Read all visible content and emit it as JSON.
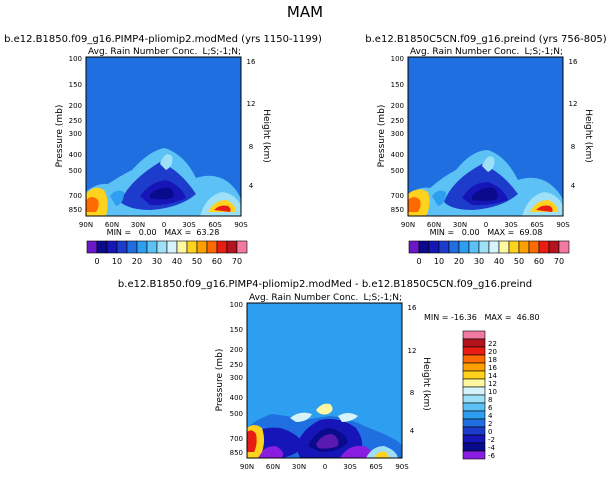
{
  "page_title": "MAM",
  "colors": {
    "top_levels": [
      "#6a18c8",
      "#0a0a8c",
      "#1515b8",
      "#1e3ccc",
      "#1f6fe0",
      "#2e9ef0",
      "#5cc2f5",
      "#9ee0f7",
      "#d6f2fa",
      "#fff8a0",
      "#ffd21e",
      "#ffa000",
      "#ff6a00",
      "#e81e14",
      "#b4141e",
      "#f07aa0"
    ],
    "diff_levels": [
      "#8a1ee0",
      "#0a0a8c",
      "#1515b8",
      "#1e3ccc",
      "#1f6fe0",
      "#2e9ef0",
      "#5cc2f5",
      "#9ee0f7",
      "#d6f2fa",
      "#fff8a0",
      "#ffd21e",
      "#ffa000",
      "#ff6a00",
      "#e81e14",
      "#b4141e",
      "#f07aa0"
    ]
  },
  "chart_data": [
    {
      "type": "heatmap",
      "title": "b.e12.B1850.f09_g16.PIMP4-pliomip2.modMed (yrs 1150-1199)",
      "subtitle_left": "Avg. Rain Number Conc.",
      "subtitle_right": "L;S;-1;N;",
      "ylabel": "Pressure (mb)",
      "ylabel_right": "Height (km)",
      "x_ticks": [
        "90N",
        "60N",
        "30N",
        "0",
        "30S",
        "60S",
        "90S"
      ],
      "y_ticks": [
        "100",
        "150",
        "200",
        "250",
        "300",
        "400",
        "500",
        "700",
        "850"
      ],
      "height_ticks": [
        "16",
        "12",
        "8",
        "4"
      ],
      "stats": "MIN =   0.00   MAX =  63.28",
      "colorbar_labels": [
        "0",
        "10",
        "20",
        "30",
        "40",
        "50",
        "60",
        "70"
      ],
      "min": 0.0,
      "max": 63.28
    },
    {
      "type": "heatmap",
      "title": "b.e12.B1850C5CN.f09_g16.preind (yrs 756-805)",
      "subtitle_left": "Avg. Rain Number Conc.",
      "subtitle_right": "L;S;-1;N;",
      "ylabel": "Pressure (mb)",
      "ylabel_right": "Height (km)",
      "x_ticks": [
        "90N",
        "60N",
        "30N",
        "0",
        "30S",
        "60S",
        "90S"
      ],
      "y_ticks": [
        "100",
        "150",
        "200",
        "250",
        "300",
        "400",
        "500",
        "700",
        "850"
      ],
      "height_ticks": [
        "16",
        "12",
        "8",
        "4"
      ],
      "stats": "MIN =   0.00   MAX =  69.08",
      "colorbar_labels": [
        "0",
        "10",
        "20",
        "30",
        "40",
        "50",
        "60",
        "70"
      ],
      "min": 0.0,
      "max": 69.08
    },
    {
      "type": "heatmap",
      "title": "b.e12.B1850.f09_g16.PIMP4-pliomip2.modMed - b.e12.B1850C5CN.f09_g16.preind",
      "subtitle_left": "Avg. Rain Number Conc.",
      "subtitle_right": "L;S;-1;N;",
      "ylabel": "Pressure (mb)",
      "ylabel_right": "Height (km)",
      "x_ticks": [
        "90N",
        "60N",
        "30N",
        "0",
        "30S",
        "60S",
        "90S"
      ],
      "y_ticks": [
        "100",
        "150",
        "200",
        "250",
        "300",
        "400",
        "500",
        "700",
        "850"
      ],
      "height_ticks": [
        "16",
        "12",
        "8",
        "4"
      ],
      "stats": "MIN = -16.36   MAX =  46.80",
      "colorbar_labels": [
        "22",
        "20",
        "18",
        "16",
        "14",
        "12",
        "10",
        "8",
        "6",
        "4",
        "2",
        "0",
        "-2",
        "-4",
        "-6"
      ],
      "min": -16.36,
      "max": 46.8
    }
  ]
}
